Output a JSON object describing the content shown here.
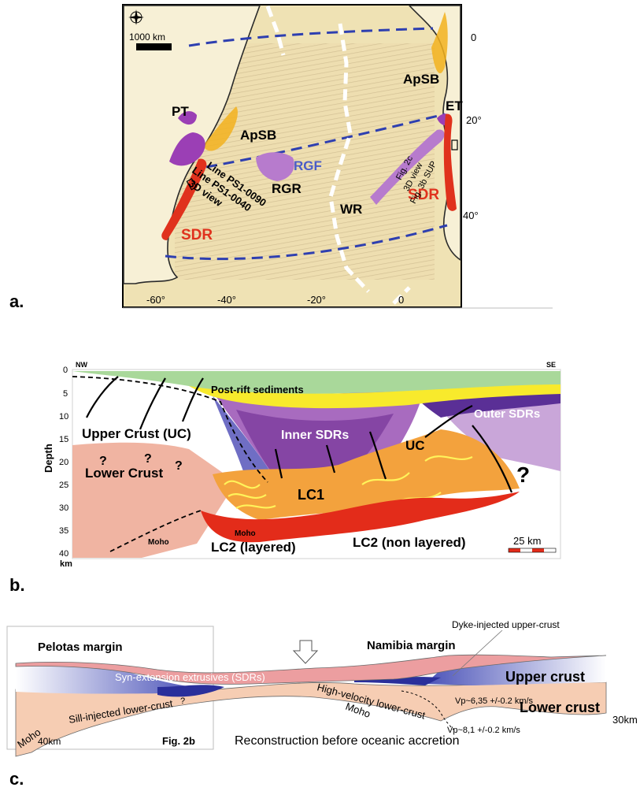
{
  "panel_a": {
    "panel_letter": "a.",
    "scale_label": "1000 km",
    "lon_ticks": [
      "-60°",
      "-40°",
      "-20°",
      "0"
    ],
    "lat_ticks": [
      "0",
      "20°",
      "40°"
    ],
    "labels": {
      "apsb_west": "ApSB",
      "apsb_east": "ApSB",
      "pt": "PT",
      "et": "ET",
      "rgf": "RGF",
      "rgr": "RGR",
      "wr": "WR",
      "sdr_west": "SDR",
      "sdr_east": "SDR",
      "line_0090": "Line PS1-0090",
      "line_0040": "Line PS1-0040",
      "view3d_west": "3D view",
      "fig2c": "Fig. 2c",
      "view3d_east": "3D view",
      "fig3b": "Fig. 3b SUP"
    },
    "colors": {
      "sea": "#efe2b4",
      "land": "#f7f0d6",
      "coast": "#2a2a2a",
      "plate_boundary": "#2e3fb0",
      "ridge": "#ffffff",
      "sdr": "#e0321d",
      "volcanic": "#9b3fb5",
      "basin": "#f2b21f"
    }
  },
  "panel_b": {
    "panel_letter": "b.",
    "nw": "NW",
    "se": "SE",
    "axis_label": "Depth",
    "depth_unit": "km",
    "depth_ticks": [
      "0",
      "5",
      "10",
      "15",
      "20",
      "25",
      "30",
      "35",
      "40"
    ],
    "scale_label": "25 km",
    "units": {
      "post_rift": "Post-rift sediments",
      "upper_crust": "Upper Crust (UC)",
      "lower_crust": "Lower Crust",
      "inner_sdrs": "Inner SDRs",
      "outer_sdrs": "Outer SDRs",
      "uc": "UC",
      "lc1": "LC1",
      "lc2_layered": "LC2 (layered)",
      "lc2_nonlayered": "LC2 (non layered)",
      "moho_1": "Moho",
      "moho_2": "Moho",
      "q1": "?",
      "q2": "?",
      "q3": "?",
      "q4": "?"
    },
    "colors": {
      "post_rift": "#a9d89a",
      "sediment_yellow": "#f8ea2c",
      "inner_sdr": "#a86bbf",
      "inner_sdr_dark": "#7f3e9f",
      "outer_sdr": "#5a2f96",
      "outer_light": "#c9a6d9",
      "blue_wedge": "#6f6ec4",
      "lower_crust": "#f0b4a2",
      "lc1": "#f3a23d",
      "lc2": "#e32c1a",
      "layered_yellow": "#fff35a"
    }
  },
  "panel_c": {
    "panel_letter": "c.",
    "pelotas": "Pelotas margin",
    "namibia": "Namibia margin",
    "dyke": "Dyke-injected upper-crust",
    "syn_extension": "Syn-extension extrusives (SDRs)",
    "upper_crust": "Upper crust",
    "lower_crust": "Lower crust",
    "high_velocity": "High-velocity lower-crust",
    "sill": "Sill-injected lower-crust",
    "moho_west": "Moho",
    "moho_mid": "Moho",
    "vp1": "Vp~6,35 +/-0.2 km/s",
    "vp2": "Vp~8,1 +/-0.2 km/s",
    "depth_40": "40km",
    "depth_30": "30km",
    "fig_ref": "Fig. 2b",
    "question": "?",
    "caption": "Reconstruction before oceanic accretion",
    "colors": {
      "upper_crust": "#4a52b8",
      "sdr": "#ec9ea0",
      "lower_crust": "#f6cdb3",
      "dark_blue": "#2a2f9b"
    }
  }
}
